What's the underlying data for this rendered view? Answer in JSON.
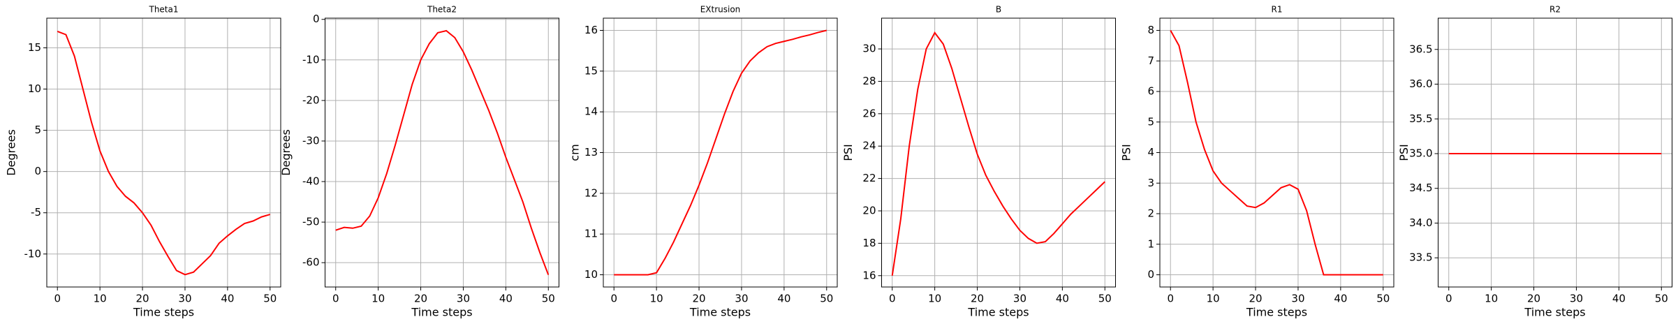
{
  "chart_data": [
    {
      "type": "line",
      "title": "Theta1",
      "xlabel": "Time steps",
      "ylabel": "Degrees",
      "color": "#ff0000",
      "grid": true,
      "x": [
        0,
        2,
        4,
        6,
        8,
        10,
        12,
        14,
        16,
        18,
        20,
        22,
        24,
        26,
        28,
        30,
        32,
        34,
        36,
        38,
        40,
        42,
        44,
        46,
        48,
        50
      ],
      "values": [
        17,
        16.6,
        14,
        10,
        6,
        2.5,
        0,
        -1.8,
        -3,
        -3.8,
        -5,
        -6.5,
        -8.5,
        -10.3,
        -12,
        -12.5,
        -12.2,
        -11.2,
        -10.2,
        -8.7,
        -7.8,
        -7,
        -6.3,
        -6,
        -5.5,
        -5.2
      ],
      "xlim": [
        -2.5,
        52.5
      ],
      "xticks": [
        0,
        10,
        20,
        30,
        40,
        50
      ],
      "ylim": [
        -14,
        18.6
      ],
      "yticks": [
        -10,
        -5,
        0,
        5,
        10,
        15
      ]
    },
    {
      "type": "line",
      "title": "Theta2",
      "xlabel": "Time steps",
      "ylabel": "Degrees",
      "color": "#ff0000",
      "grid": true,
      "x": [
        0,
        2,
        4,
        6,
        8,
        10,
        12,
        14,
        16,
        18,
        20,
        22,
        24,
        26,
        28,
        30,
        32,
        34,
        36,
        38,
        40,
        42,
        44,
        46,
        48,
        50
      ],
      "values": [
        -52,
        -51.3,
        -51.5,
        -51,
        -48.5,
        -44,
        -38,
        -31,
        -23.5,
        -16,
        -10,
        -6,
        -3.3,
        -2.8,
        -4.5,
        -8,
        -12.5,
        -17.5,
        -22.5,
        -28,
        -34,
        -39.5,
        -45,
        -51.5,
        -57.5,
        -63
      ],
      "xlim": [
        -2.5,
        52.5
      ],
      "xticks": [
        0,
        10,
        20,
        30,
        40,
        50
      ],
      "ylim": [
        -66,
        0.3
      ],
      "yticks": [
        -60,
        -50,
        -40,
        -30,
        -20,
        -10,
        0
      ]
    },
    {
      "type": "line",
      "title": "EXtrusion",
      "xlabel": "Time steps",
      "ylabel": "cm",
      "color": "#ff0000",
      "grid": true,
      "x": [
        0,
        2,
        4,
        6,
        8,
        10,
        12,
        14,
        16,
        18,
        20,
        22,
        24,
        26,
        28,
        30,
        32,
        34,
        36,
        38,
        40,
        42,
        44,
        46,
        48,
        50
      ],
      "values": [
        10,
        10,
        10,
        10,
        10,
        10.05,
        10.4,
        10.8,
        11.25,
        11.7,
        12.2,
        12.75,
        13.35,
        13.95,
        14.5,
        14.95,
        15.25,
        15.45,
        15.6,
        15.68,
        15.73,
        15.78,
        15.84,
        15.89,
        15.95,
        16
      ],
      "xlim": [
        -2.5,
        52.5
      ],
      "xticks": [
        0,
        10,
        20,
        30,
        40,
        50
      ],
      "ylim": [
        9.7,
        16.3
      ],
      "yticks": [
        10,
        11,
        12,
        13,
        14,
        15,
        16
      ]
    },
    {
      "type": "line",
      "title": "B",
      "xlabel": "Time steps",
      "ylabel": "PSI",
      "color": "#ff0000",
      "grid": true,
      "x": [
        0,
        2,
        4,
        6,
        8,
        10,
        12,
        14,
        16,
        18,
        20,
        22,
        24,
        26,
        28,
        30,
        32,
        34,
        36,
        38,
        40,
        42,
        44,
        46,
        48,
        50
      ],
      "values": [
        16,
        19.5,
        24,
        27.5,
        30,
        31,
        30.3,
        28.8,
        27,
        25.2,
        23.5,
        22.2,
        21.2,
        20.3,
        19.5,
        18.8,
        18.3,
        18,
        18.1,
        18.6,
        19.2,
        19.8,
        20.3,
        20.8,
        21.3,
        21.8
      ],
      "xlim": [
        -2.5,
        52.5
      ],
      "xticks": [
        0,
        10,
        20,
        30,
        40,
        50
      ],
      "ylim": [
        15.3,
        31.9
      ],
      "yticks": [
        16,
        18,
        20,
        22,
        24,
        26,
        28,
        30
      ]
    },
    {
      "type": "line",
      "title": "R1",
      "xlabel": "Time steps",
      "ylabel": "PSI",
      "color": "#ff0000",
      "grid": true,
      "x": [
        0,
        2,
        4,
        6,
        8,
        10,
        12,
        14,
        16,
        18,
        20,
        22,
        24,
        26,
        28,
        30,
        32,
        34,
        36,
        38,
        40,
        42,
        44,
        46,
        48,
        50
      ],
      "values": [
        8,
        7.5,
        6.3,
        5,
        4.1,
        3.4,
        3,
        2.75,
        2.5,
        2.25,
        2.2,
        2.35,
        2.6,
        2.85,
        2.95,
        2.8,
        2.1,
        1,
        0,
        0,
        0,
        0,
        0,
        0,
        0,
        0
      ],
      "xlim": [
        -2.5,
        52.5
      ],
      "xticks": [
        0,
        10,
        20,
        30,
        40,
        50
      ],
      "ylim": [
        -0.4,
        8.4
      ],
      "yticks": [
        0,
        1,
        2,
        3,
        4,
        5,
        6,
        7,
        8
      ]
    },
    {
      "type": "line",
      "title": "R2",
      "xlabel": "Time steps",
      "ylabel": "PSI",
      "color": "#ff0000",
      "grid": true,
      "x": [
        0,
        2,
        4,
        6,
        8,
        10,
        12,
        14,
        16,
        18,
        20,
        22,
        24,
        26,
        28,
        30,
        32,
        34,
        36,
        38,
        40,
        42,
        44,
        46,
        48,
        50
      ],
      "values": [
        35,
        35,
        35,
        35,
        35,
        35,
        35,
        35,
        35,
        35,
        35,
        35,
        35,
        35,
        35,
        35,
        35,
        35,
        35,
        35,
        35,
        35,
        35,
        35,
        35,
        35
      ],
      "xlim": [
        -2.5,
        52.5
      ],
      "xticks": [
        0,
        10,
        20,
        30,
        40,
        50
      ],
      "ylim": [
        33.08,
        36.95
      ],
      "yticks": [
        33.5,
        {
          "value": 34,
          "label": "34.0"
        },
        34.5,
        {
          "value": 35,
          "label": "35.0"
        },
        35.5,
        {
          "value": 36,
          "label": "36.0"
        },
        36.5
      ]
    }
  ]
}
